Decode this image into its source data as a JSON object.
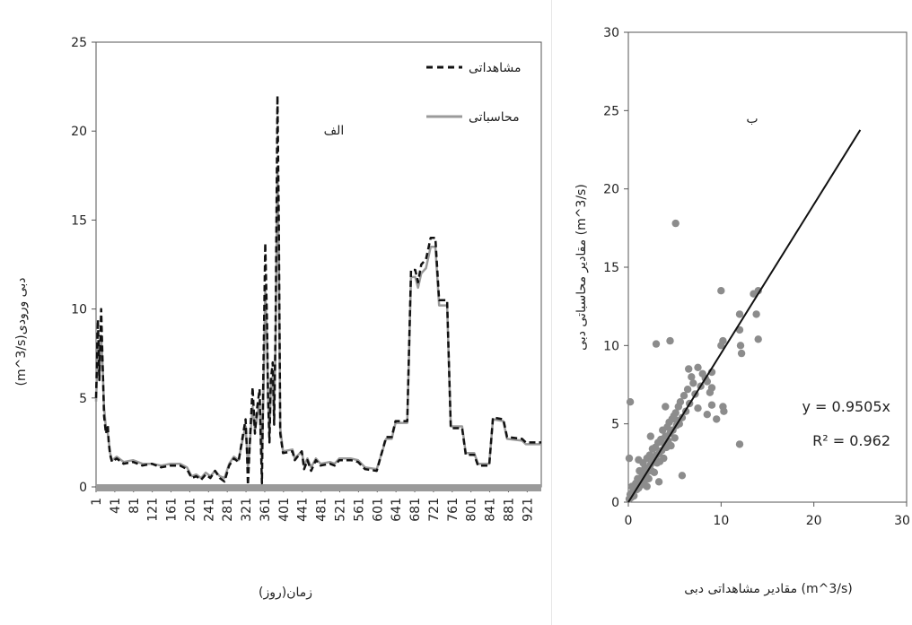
{
  "chart_data": [
    {
      "type": "line",
      "panel_label": "الف",
      "xlabel": "زمان(روز)",
      "ylabel": "(m^3/s)دبی ورودی",
      "ylim": [
        0,
        25
      ],
      "yticks": [
        0,
        5,
        10,
        15,
        20,
        25
      ],
      "xlim": [
        1,
        951
      ],
      "xticks": [
        1,
        41,
        81,
        121,
        161,
        201,
        241,
        281,
        321,
        361,
        401,
        441,
        481,
        521,
        561,
        601,
        641,
        681,
        721,
        761,
        801,
        841,
        881,
        921
      ],
      "legend_position": "top-right",
      "grid": false,
      "series": [
        {
          "name": "مشاهداتی",
          "style": "dashed",
          "color": "#111111",
          "points": [
            [
              1,
              5
            ],
            [
              5,
              9.4
            ],
            [
              8,
              6
            ],
            [
              12,
              10
            ],
            [
              15,
              7
            ],
            [
              18,
              4
            ],
            [
              22,
              3
            ],
            [
              26,
              3.5
            ],
            [
              28,
              2.5
            ],
            [
              31,
              1.8
            ],
            [
              35,
              1.4
            ],
            [
              45,
              1.6
            ],
            [
              60,
              1.3
            ],
            [
              80,
              1.4
            ],
            [
              100,
              1.2
            ],
            [
              120,
              1.3
            ],
            [
              140,
              1.1
            ],
            [
              160,
              1.2
            ],
            [
              180,
              1.2
            ],
            [
              195,
              1
            ],
            [
              205,
              0.5
            ],
            [
              215,
              0.6
            ],
            [
              225,
              0.4
            ],
            [
              235,
              0.7
            ],
            [
              245,
              0.5
            ],
            [
              255,
              0.9
            ],
            [
              265,
              0.5
            ],
            [
              275,
              0.3
            ],
            [
              285,
              1.2
            ],
            [
              295,
              1.6
            ],
            [
              305,
              1.4
            ],
            [
              315,
              3
            ],
            [
              320,
              3.8
            ],
            [
              323,
              2
            ],
            [
              325,
              0.1
            ],
            [
              330,
              3
            ],
            [
              335,
              5.6
            ],
            [
              340,
              3
            ],
            [
              345,
              4.5
            ],
            [
              350,
              5.5
            ],
            [
              352,
              3
            ],
            [
              355,
              0.2
            ],
            [
              358,
              6.5
            ],
            [
              362,
              13.7
            ],
            [
              366,
              9
            ],
            [
              368,
              5
            ],
            [
              371,
              2.5
            ],
            [
              374,
              6
            ],
            [
              378,
              7
            ],
            [
              381,
              3.5
            ],
            [
              384,
              9
            ],
            [
              388,
              22
            ],
            [
              391,
              15
            ],
            [
              394,
              3
            ],
            [
              400,
              1.9
            ],
            [
              420,
              2
            ],
            [
              425,
              1.5
            ],
            [
              440,
              2
            ],
            [
              445,
              1
            ],
            [
              452,
              1.5
            ],
            [
              460,
              0.9
            ],
            [
              470,
              1.5
            ],
            [
              480,
              1.2
            ],
            [
              500,
              1.3
            ],
            [
              510,
              1.2
            ],
            [
              520,
              1.5
            ],
            [
              545,
              1.5
            ],
            [
              560,
              1.4
            ],
            [
              575,
              1
            ],
            [
              600,
              0.9
            ],
            [
              620,
              2.8
            ],
            [
              632,
              2.8
            ],
            [
              640,
              3.7
            ],
            [
              665,
              3.7
            ],
            [
              673,
              12.2
            ],
            [
              682,
              12.2
            ],
            [
              688,
              11.5
            ],
            [
              695,
              12.5
            ],
            [
              705,
              12.8
            ],
            [
              715,
              14
            ],
            [
              725,
              14
            ],
            [
              733,
              10.5
            ],
            [
              750,
              10.5
            ],
            [
              758,
              3.3
            ],
            [
              782,
              3.3
            ],
            [
              790,
              1.8
            ],
            [
              808,
              1.8
            ],
            [
              816,
              1.2
            ],
            [
              840,
              1.2
            ],
            [
              848,
              3.9
            ],
            [
              870,
              3.8
            ],
            [
              878,
              2.8
            ],
            [
              910,
              2.7
            ],
            [
              918,
              2.5
            ],
            [
              951,
              2.5
            ]
          ]
        },
        {
          "name": "محاسباتی",
          "style": "solid",
          "color": "#9a9a9a",
          "points": [
            [
              1,
              4.8
            ],
            [
              5,
              8
            ],
            [
              8,
              6.2
            ],
            [
              12,
              8.5
            ],
            [
              15,
              6.8
            ],
            [
              18,
              4.5
            ],
            [
              22,
              3.3
            ],
            [
              26,
              3
            ],
            [
              28,
              2.6
            ],
            [
              31,
              1.9
            ],
            [
              35,
              1.5
            ],
            [
              45,
              1.7
            ],
            [
              60,
              1.4
            ],
            [
              80,
              1.5
            ],
            [
              100,
              1.3
            ],
            [
              120,
              1.3
            ],
            [
              140,
              1.2
            ],
            [
              160,
              1.3
            ],
            [
              180,
              1.3
            ],
            [
              195,
              1.1
            ],
            [
              205,
              0.6
            ],
            [
              215,
              0.7
            ],
            [
              225,
              0.5
            ],
            [
              235,
              0.8
            ],
            [
              245,
              0.6
            ],
            [
              255,
              0.9
            ],
            [
              265,
              0.6
            ],
            [
              275,
              0.5
            ],
            [
              285,
              1.3
            ],
            [
              295,
              1.7
            ],
            [
              305,
              1.5
            ],
            [
              315,
              2.8
            ],
            [
              320,
              3.4
            ],
            [
              323,
              2.2
            ],
            [
              325,
              1
            ],
            [
              330,
              2.8
            ],
            [
              335,
              4.5
            ],
            [
              340,
              3.2
            ],
            [
              345,
              4
            ],
            [
              350,
              4.8
            ],
            [
              352,
              3.2
            ],
            [
              355,
              1.5
            ],
            [
              358,
              5
            ],
            [
              362,
              11
            ],
            [
              366,
              8
            ],
            [
              368,
              5.2
            ],
            [
              371,
              3
            ],
            [
              374,
              5.5
            ],
            [
              378,
              6.2
            ],
            [
              381,
              4
            ],
            [
              384,
              8
            ],
            [
              388,
              18
            ],
            [
              391,
              13
            ],
            [
              394,
              3.3
            ],
            [
              400,
              2
            ],
            [
              420,
              2.1
            ],
            [
              425,
              1.6
            ],
            [
              440,
              2
            ],
            [
              445,
              1.2
            ],
            [
              452,
              1.6
            ],
            [
              460,
              1.1
            ],
            [
              470,
              1.6
            ],
            [
              480,
              1.3
            ],
            [
              500,
              1.4
            ],
            [
              510,
              1.3
            ],
            [
              520,
              1.6
            ],
            [
              545,
              1.6
            ],
            [
              560,
              1.5
            ],
            [
              575,
              1.1
            ],
            [
              600,
              1
            ],
            [
              620,
              2.7
            ],
            [
              632,
              2.7
            ],
            [
              640,
              3.6
            ],
            [
              665,
              3.6
            ],
            [
              673,
              11.8
            ],
            [
              682,
              11.8
            ],
            [
              688,
              11.2
            ],
            [
              695,
              12
            ],
            [
              705,
              12.3
            ],
            [
              715,
              13.5
            ],
            [
              725,
              13.5
            ],
            [
              733,
              10.2
            ],
            [
              750,
              10.2
            ],
            [
              758,
              3.4
            ],
            [
              782,
              3.4
            ],
            [
              790,
              1.9
            ],
            [
              808,
              1.9
            ],
            [
              816,
              1.3
            ],
            [
              840,
              1.3
            ],
            [
              848,
              3.8
            ],
            [
              870,
              3.7
            ],
            [
              878,
              2.7
            ],
            [
              910,
              2.6
            ],
            [
              918,
              2.4
            ],
            [
              951,
              2.4
            ]
          ]
        }
      ]
    },
    {
      "type": "scatter",
      "panel_label": "ب",
      "xlabel": "مقادیر مشاهداتی دبی (m^3/s)",
      "ylabel": "مقادیر محاسباتی دبی (m^3/s)",
      "xlim": [
        0,
        30
      ],
      "ylim": [
        0,
        30
      ],
      "xticks": [
        0,
        10,
        20,
        30
      ],
      "yticks": [
        0,
        5,
        10,
        15,
        20,
        25,
        30
      ],
      "grid": false,
      "equation": "y = 0.9505x",
      "r_squared": "R² = 0.962",
      "trendline": {
        "slope": 0.9505,
        "x_range": [
          0,
          25
        ]
      },
      "points": [
        [
          0.1,
          0.2
        ],
        [
          0.2,
          0.5
        ],
        [
          0.3,
          0.3
        ],
        [
          0.4,
          1
        ],
        [
          0.5,
          0.7
        ],
        [
          0.6,
          0.4
        ],
        [
          0.8,
          1.2
        ],
        [
          0.9,
          0.8
        ],
        [
          1,
          1.5
        ],
        [
          1.1,
          0.9
        ],
        [
          1.2,
          2
        ],
        [
          1.3,
          1.4
        ],
        [
          1.4,
          1.1
        ],
        [
          1.5,
          1.8
        ],
        [
          1.6,
          2.5
        ],
        [
          1.7,
          1.3
        ],
        [
          1.8,
          2.2
        ],
        [
          1.9,
          1.7
        ],
        [
          2,
          2.8
        ],
        [
          2.1,
          2
        ],
        [
          2.2,
          1.5
        ],
        [
          2.3,
          3
        ],
        [
          2.4,
          2.4
        ],
        [
          2.5,
          2
        ],
        [
          2.6,
          3.4
        ],
        [
          2.7,
          2.7
        ],
        [
          2.8,
          1.9
        ],
        [
          2.9,
          3.5
        ],
        [
          3,
          3
        ],
        [
          3.1,
          2.5
        ],
        [
          3.2,
          3.8
        ],
        [
          3.3,
          3.1
        ],
        [
          3.4,
          2.6
        ],
        [
          3.5,
          4
        ],
        [
          3.6,
          3.3
        ],
        [
          3.7,
          4.6
        ],
        [
          3.8,
          2.8
        ],
        [
          3.9,
          3.7
        ],
        [
          4,
          4.2
        ],
        [
          4.1,
          3.5
        ],
        [
          4.2,
          4.8
        ],
        [
          4.3,
          3.9
        ],
        [
          4.4,
          5.1
        ],
        [
          4.5,
          4.4
        ],
        [
          4.6,
          3.6
        ],
        [
          4.7,
          5.3
        ],
        [
          4.8,
          4.6
        ],
        [
          4.9,
          5.5
        ],
        [
          5,
          4.1
        ],
        [
          5.1,
          5.7
        ],
        [
          5.2,
          4.9
        ],
        [
          5.3,
          5.2
        ],
        [
          5.4,
          6.1
        ],
        [
          5.5,
          5
        ],
        [
          5.6,
          6.4
        ],
        [
          5.8,
          5.4
        ],
        [
          6,
          6.8
        ],
        [
          6.2,
          5.8
        ],
        [
          6.4,
          7.2
        ],
        [
          6.6,
          6.3
        ],
        [
          6.8,
          8
        ],
        [
          7,
          7.6
        ],
        [
          7.2,
          6.9
        ],
        [
          7.5,
          8.6
        ],
        [
          7.8,
          7.4
        ],
        [
          8,
          8.2
        ],
        [
          8.3,
          7.9
        ],
        [
          8.5,
          5.6
        ],
        [
          8.8,
          7
        ],
        [
          9,
          8.3
        ],
        [
          9.5,
          5.3
        ],
        [
          0.2,
          6.4
        ],
        [
          0.1,
          2.8
        ],
        [
          3,
          10.1
        ],
        [
          4.5,
          10.3
        ],
        [
          5.1,
          17.8
        ],
        [
          5.8,
          1.7
        ],
        [
          3.3,
          1.3
        ],
        [
          2,
          1
        ],
        [
          10,
          13.5
        ],
        [
          10.2,
          10.3
        ],
        [
          10,
          10
        ],
        [
          10.3,
          5.8
        ],
        [
          10.2,
          6.1
        ],
        [
          12,
          12
        ],
        [
          12,
          11
        ],
        [
          12.1,
          10
        ],
        [
          12,
          3.7
        ],
        [
          12.2,
          9.5
        ],
        [
          13.5,
          13.3
        ],
        [
          14,
          13.5
        ],
        [
          13.8,
          12
        ],
        [
          14,
          10.4
        ],
        [
          9,
          7.3
        ],
        [
          9,
          6.2
        ],
        [
          8.5,
          7.7
        ],
        [
          7.5,
          6
        ],
        [
          6.5,
          8.5
        ],
        [
          4,
          6.1
        ],
        [
          1.1,
          2.7
        ],
        [
          2.4,
          4.2
        ]
      ]
    }
  ]
}
